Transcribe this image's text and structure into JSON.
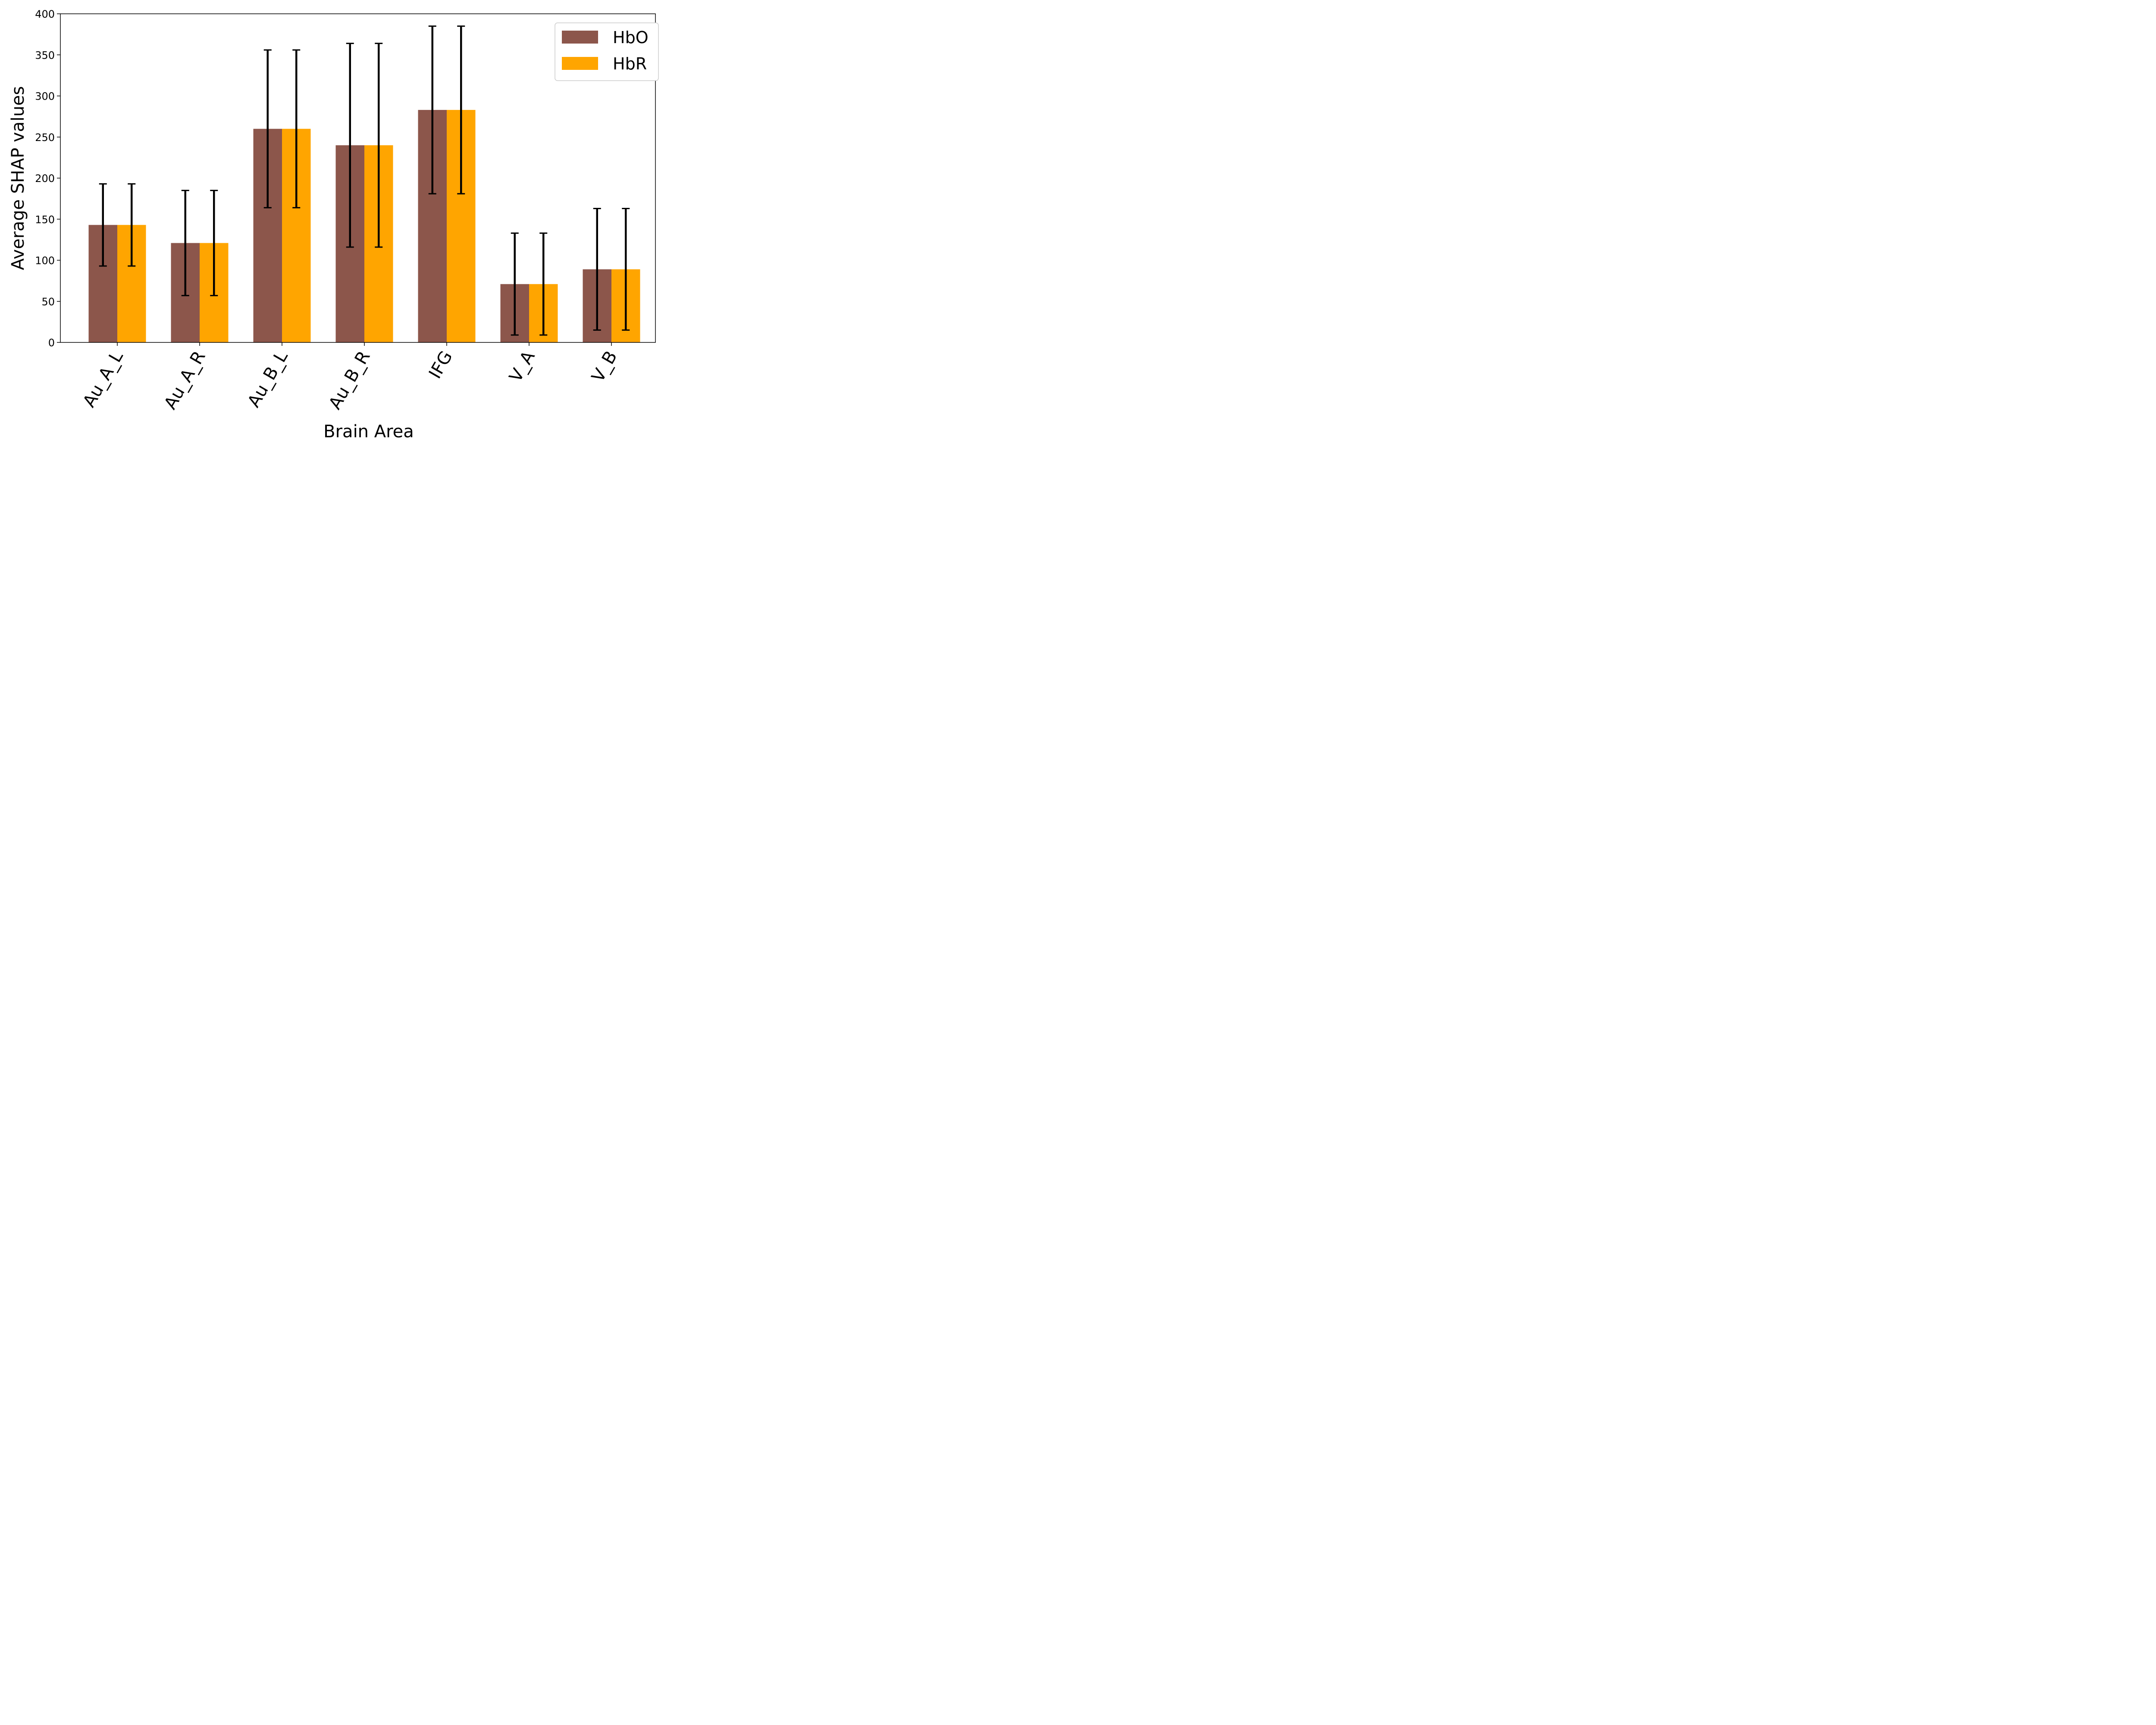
{
  "chart_data": {
    "type": "bar",
    "title": "",
    "xlabel": "Brain Area",
    "ylabel": "Average SHAP values",
    "ylim": [
      0,
      400
    ],
    "yticks": [
      0,
      50,
      100,
      150,
      200,
      250,
      300,
      350,
      400
    ],
    "categories": [
      "Au_A_L",
      "Au_A_R",
      "Au_B_L",
      "Au_B_R",
      "IFG",
      "V_A",
      "V_B"
    ],
    "series": [
      {
        "name": "HbO",
        "color": "#8c564b",
        "values": [
          143,
          121,
          260,
          240,
          283,
          71,
          89
        ],
        "error": [
          50,
          64,
          96,
          124,
          102,
          62,
          74
        ]
      },
      {
        "name": "HbR",
        "color": "#ffa500",
        "values": [
          143,
          121,
          260,
          240,
          283,
          71,
          89
        ],
        "error": [
          50,
          64,
          96,
          124,
          102,
          62,
          74
        ]
      }
    ],
    "grid": false,
    "legend": "top-right",
    "error_bar_color": "#000000"
  }
}
